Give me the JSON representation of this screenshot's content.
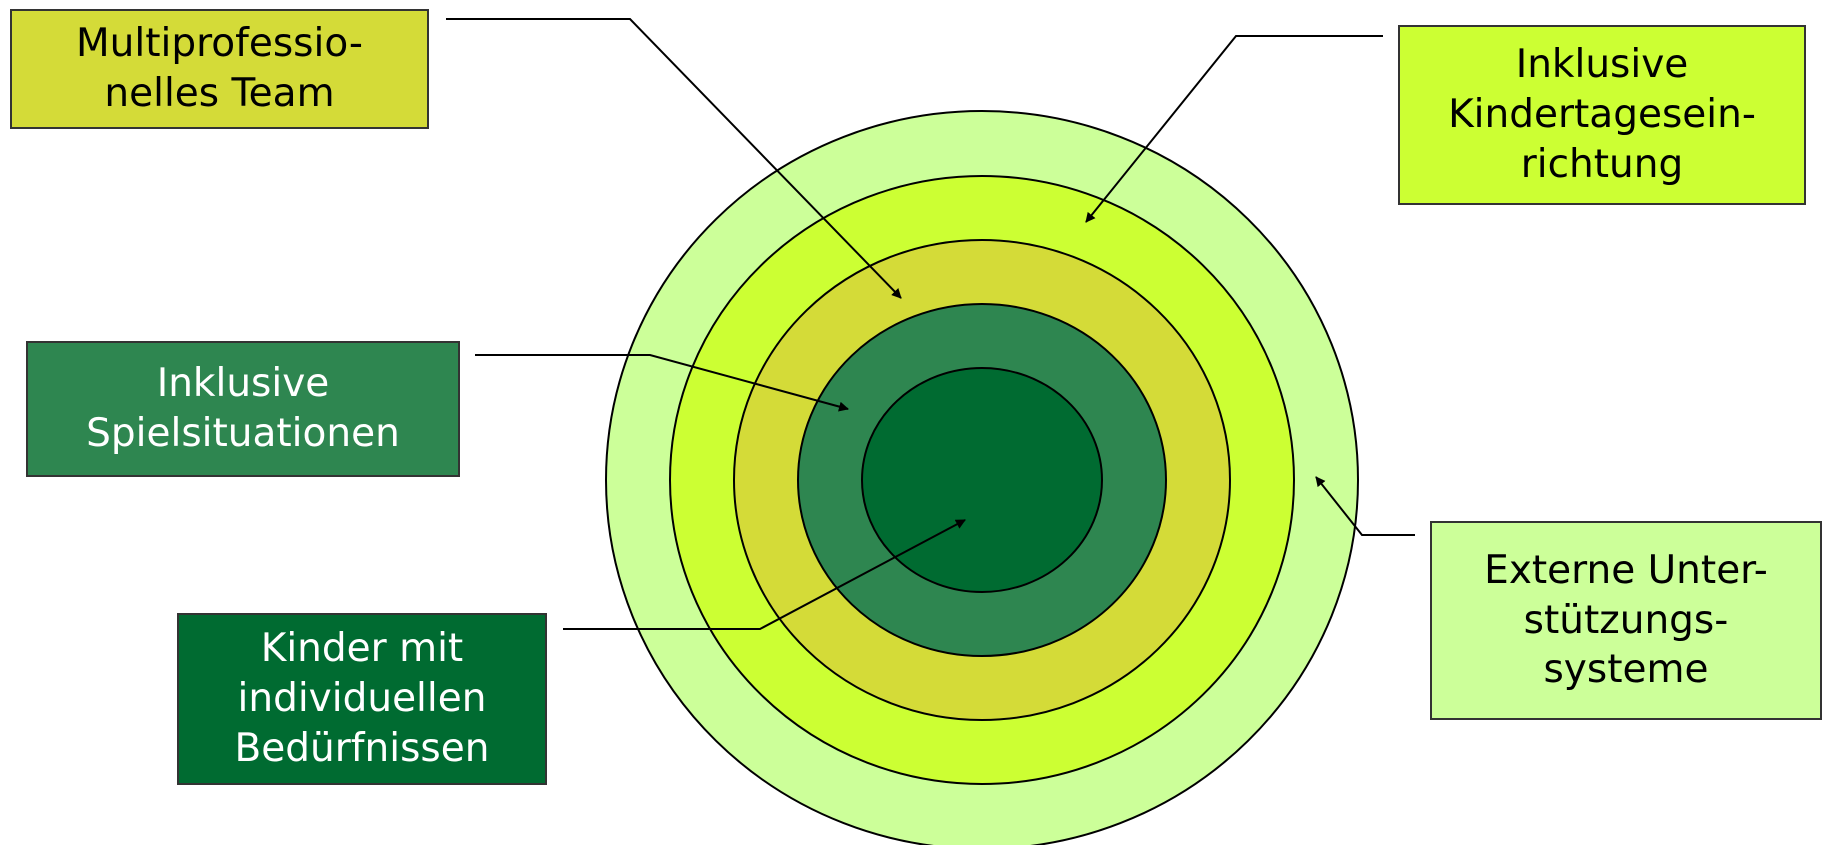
{
  "colors": {
    "outline": "#000000",
    "ring_externe": "#ccff99",
    "ring_kita": "#ccff33",
    "ring_team": "#d4db38",
    "ring_spiel": "#2e8650",
    "core_kinder": "#006b31",
    "dark_text": "#000000",
    "light_text": "#ffffff"
  },
  "labels": {
    "multiprofessionelles_team": "Multiprofessio-\nnelles Team",
    "inklusive_kita": "Inklusive\nKindertagesein-\nrichtung",
    "inklusive_spielsituationen": "Inklusive\nSpielsituationen",
    "kinder": "Kinder mit\nindividuellen\nBedürfnissen",
    "externe": "Externe Unter-\nstützungs-\nsysteme"
  }
}
